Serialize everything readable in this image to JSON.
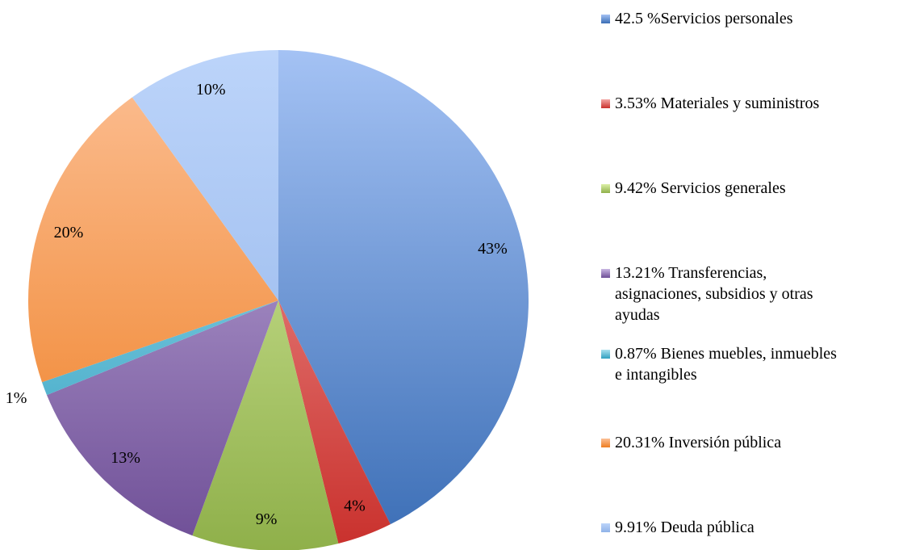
{
  "chart_data": {
    "type": "pie",
    "categories": [
      "42.5 %Servicios personales",
      "3.53% Materiales y suministros",
      "9.42% Servicios generales",
      "13.21% Transferencias, asignaciones, subsidios y otras ayudas",
      "0.87% Bienes muebles, inmuebles e intangibles",
      "20.31% Inversión pública",
      "9.91% Deuda pública"
    ],
    "values": [
      42.5,
      3.53,
      9.42,
      13.21,
      0.87,
      20.31,
      9.91
    ],
    "value_labels": [
      "43%",
      "4%",
      "9%",
      "13%",
      "1%",
      "20%",
      "10%"
    ],
    "colors": [
      [
        "#a4c2f4",
        "#3a6db5"
      ],
      [
        "#f4a6a4",
        "#c9302c"
      ],
      [
        "#dcf0a8",
        "#8fb04a"
      ],
      [
        "#c8b6e2",
        "#6e4e96"
      ],
      [
        "#a8e0ef",
        "#2fa0c0"
      ],
      [
        "#fcc096",
        "#ee7d20"
      ],
      [
        "#bcd4fa",
        "#8fb2e8"
      ]
    ],
    "legend": "right"
  }
}
